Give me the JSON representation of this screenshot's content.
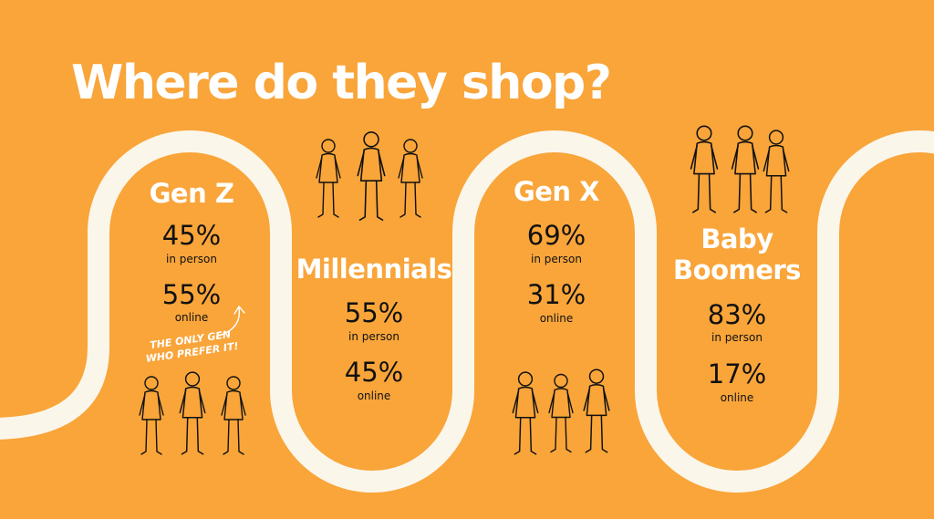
{
  "title": "Where do they shop?",
  "generations": [
    {
      "name": [
        "Gen Z"
      ],
      "in_person": "45%",
      "in_person_label": "in person",
      "online": "55%",
      "online_label": "online"
    },
    {
      "name": [
        "Millennials"
      ],
      "in_person": "55%",
      "in_person_label": "in person",
      "online": "45%",
      "online_label": "online"
    },
    {
      "name": [
        "Gen X"
      ],
      "in_person": "69%",
      "in_person_label": "in person",
      "online": "31%",
      "online_label": "online"
    },
    {
      "name": [
        "Baby",
        "Boomers"
      ],
      "in_person": "83%",
      "in_person_label": "in person",
      "online": "17%",
      "online_label": "online"
    }
  ],
  "annotation": [
    "THE ONLY GEN",
    "WHO PREFER IT!"
  ]
}
